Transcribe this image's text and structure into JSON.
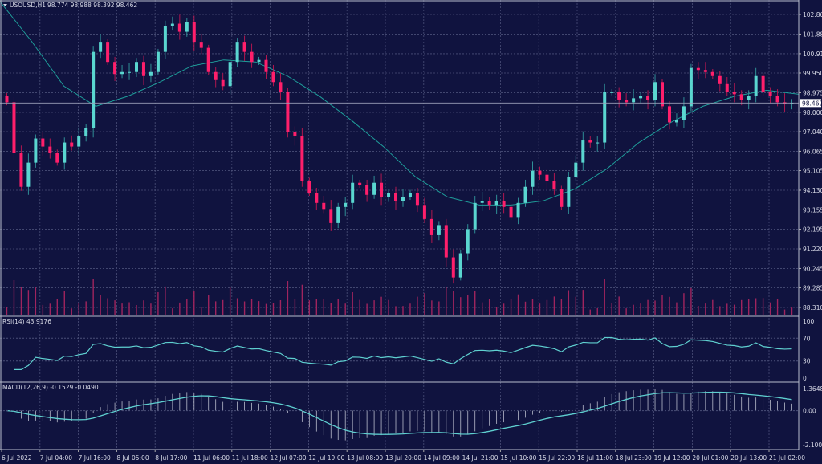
{
  "chart_data": {
    "type": "candlestick",
    "symbol_info": "USOUSD,H1",
    "ohlc_header": "98.774 98.988 98.392 98.462",
    "current_price": "98.462",
    "price_ticks": [
      "102.860",
      "101.885",
      "100.910",
      "99.950",
      "98.975",
      "98.000",
      "97.040",
      "96.065",
      "95.105",
      "94.130",
      "93.155",
      "92.195",
      "91.220",
      "90.245",
      "89.285",
      "88.310"
    ],
    "ylim": [
      88.0,
      103.4
    ],
    "time_labels": [
      "6 Jul 2022",
      "7 Jul 04:00",
      "7 Jul 16:00",
      "8 Jul 05:00",
      "8 Jul 17:00",
      "11 Jul 06:00",
      "11 Jul 18:00",
      "12 Jul 07:00",
      "12 Jul 19:00",
      "13 Jul 08:00",
      "13 Jul 20:00",
      "14 Jul 09:00",
      "14 Jul 21:00",
      "15 Jul 10:00",
      "15 Jul 22:00",
      "18 Jul 11:00",
      "18 Jul 23:00",
      "19 Jul 12:00",
      "20 Jul 01:00",
      "20 Jul 13:00",
      "21 Jul 02:00"
    ],
    "closes": [
      98.5,
      96.0,
      94.3,
      95.5,
      96.7,
      96.3,
      96.0,
      95.5,
      96.5,
      96.3,
      96.8,
      97.2,
      101.0,
      101.5,
      100.5,
      99.9,
      100.0,
      100.0,
      100.5,
      99.8,
      100.0,
      101.0,
      102.3,
      102.4,
      102.0,
      102.5,
      101.5,
      101.2,
      100.0,
      99.6,
      99.3,
      100.5,
      101.5,
      101.0,
      100.5,
      100.6,
      100.0,
      99.5,
      99.0,
      97.0,
      96.8,
      94.6,
      94.0,
      93.5,
      93.2,
      92.5,
      93.3,
      93.5,
      94.5,
      94.4,
      93.9,
      94.5,
      93.8,
      94.0,
      93.6,
      93.8,
      94.0,
      93.4,
      92.7,
      91.9,
      92.4,
      90.8,
      89.8,
      91.0,
      92.2,
      93.5,
      93.6,
      93.4,
      93.6,
      93.3,
      92.8,
      93.5,
      94.3,
      95.1,
      94.9,
      94.6,
      94.2,
      93.3,
      94.8,
      95.5,
      96.6,
      96.5,
      96.5,
      99.0,
      99.0,
      98.6,
      98.5,
      98.7,
      98.8,
      98.6,
      99.5,
      98.3,
      97.5,
      97.6,
      98.3,
      100.2,
      100.1,
      100.0,
      99.8,
      99.4,
      99.0,
      98.9,
      98.6,
      98.8,
      99.8,
      99.0,
      98.8,
      98.5,
      98.4,
      98.46
    ],
    "moving_average": [
      103.5,
      101.5,
      99.3,
      98.3,
      98.8,
      99.5,
      100.3,
      100.6,
      100.5,
      99.8,
      98.8,
      97.6,
      96.3,
      94.8,
      93.8,
      93.4,
      93.4,
      93.6,
      94.2,
      95.2,
      96.5,
      97.5,
      98.3,
      98.8,
      99.1,
      98.9
    ],
    "rsi": {
      "label": "RSI(14) 43.9176",
      "ticks": [
        "100",
        "70",
        "30",
        "0"
      ],
      "levels": [
        70,
        30
      ],
      "ylim": [
        0,
        100
      ]
    },
    "macd": {
      "label": "MACD(12,26,9) -0.1529 -0.0490",
      "ticks": [
        "1.3648",
        "0.00",
        "-2.1005"
      ],
      "ylim": [
        -2.1005,
        1.3648
      ]
    },
    "colors": {
      "background": "#10133f",
      "up": "#5ad6d0",
      "down": "#ff1f6b",
      "ma": "#1f9e9a",
      "grid": "#4a4f78",
      "volume": "#a0245e",
      "indicator": "#5fd0d0"
    }
  }
}
